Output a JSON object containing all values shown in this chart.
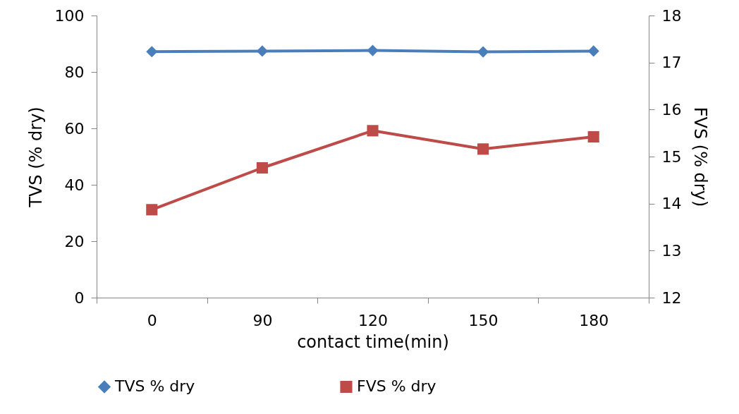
{
  "chart_data": {
    "type": "line",
    "xlabel": "contact time(min)",
    "ylabel": "TVS (% dry)",
    "y2label": "FVS (% dry)",
    "categories": [
      "0",
      "90",
      "120",
      "150",
      "180"
    ],
    "series": [
      {
        "name": "TVS % dry",
        "color": "#4a7ebb",
        "marker": "diamond",
        "values": [
          87.2,
          87.4,
          87.6,
          87.1,
          87.4
        ]
      },
      {
        "name": "FVS % dry",
        "color": "#be4b48",
        "marker": "square",
        "axis": "y2",
        "values": [
          13.87,
          14.76,
          15.55,
          15.16,
          15.42
        ]
      }
    ],
    "ylim": [
      0,
      100
    ],
    "yticks": [
      0,
      20,
      40,
      60,
      80,
      100
    ],
    "y2lim": [
      12,
      18
    ],
    "y2ticks": [
      12,
      13,
      14,
      15,
      16,
      17,
      18
    ],
    "grid": false,
    "legend": "bottom"
  }
}
